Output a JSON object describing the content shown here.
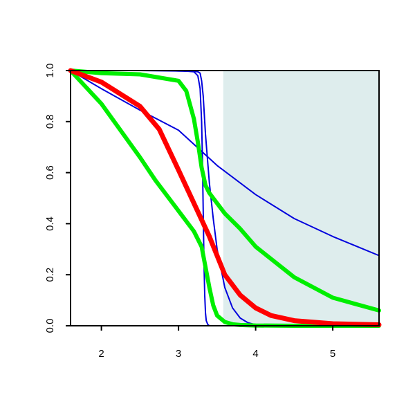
{
  "chart_data": {
    "type": "line",
    "title": "",
    "xlabel": "",
    "ylabel": "",
    "xlim": [
      1.6,
      5.6
    ],
    "ylim": [
      0,
      1
    ],
    "x_ticks": [
      2,
      3,
      4,
      5
    ],
    "y_ticks": [
      0,
      0.2,
      0.4,
      0.6,
      0.8,
      1
    ],
    "x_tick_labels": [
      "2",
      "3",
      "4",
      "5"
    ],
    "y_tick_labels": [
      "0.0",
      "0.2",
      "0.4",
      "0.6",
      "0.8",
      "1.0"
    ],
    "grid": false,
    "legend": "none",
    "shaded_region": {
      "x_from": 3.58,
      "x_to": 5.6,
      "color": "#deeded"
    },
    "series": [
      {
        "color": "#0000dd",
        "width": 2,
        "x": [
          1.6,
          2.0,
          2.5,
          3.0,
          3.5,
          4.0,
          4.5,
          5.0,
          5.6
        ],
        "y": [
          1.0,
          0.929,
          0.845,
          0.766,
          0.628,
          0.514,
          0.42,
          0.35,
          0.275
        ]
      },
      {
        "color": "#0000dd",
        "width": 2,
        "x": [
          1.6,
          2.5,
          3.0,
          3.2,
          3.25,
          3.28,
          3.3,
          3.32,
          3.35,
          3.4,
          3.45,
          3.5,
          3.6,
          3.7,
          3.8,
          3.9,
          4.0,
          4.5,
          5.6
        ],
        "y": [
          1.0,
          1.0,
          0.998,
          0.997,
          0.995,
          0.99,
          0.96,
          0.9,
          0.75,
          0.56,
          0.42,
          0.3,
          0.15,
          0.07,
          0.03,
          0.012,
          0.004,
          0.0,
          0.0
        ]
      },
      {
        "color": "#0000dd",
        "width": 2,
        "x": [
          1.6,
          3.0,
          3.2,
          3.25,
          3.28,
          3.3,
          3.31,
          3.32,
          3.33,
          3.34,
          3.35,
          3.36,
          3.38,
          3.4,
          3.6,
          5.6
        ],
        "y": [
          1.0,
          1.0,
          0.995,
          0.98,
          0.93,
          0.8,
          0.65,
          0.45,
          0.25,
          0.12,
          0.05,
          0.02,
          0.005,
          0.0,
          0.0,
          0.0
        ]
      },
      {
        "color": "#00ee00",
        "width": 6,
        "x": [
          1.6,
          2.0,
          2.5,
          3.0,
          3.1,
          3.2,
          3.25,
          3.3,
          3.35,
          3.4,
          3.45,
          3.5,
          3.6,
          3.8,
          4.0,
          4.5,
          5.0,
          5.6
        ],
        "y": [
          1.0,
          0.99,
          0.985,
          0.96,
          0.92,
          0.81,
          0.72,
          0.62,
          0.55,
          0.52,
          0.5,
          0.48,
          0.44,
          0.38,
          0.31,
          0.19,
          0.11,
          0.06
        ]
      },
      {
        "color": "#00ee00",
        "width": 6,
        "x": [
          1.6,
          2.0,
          2.5,
          2.7,
          3.0,
          3.2,
          3.3,
          3.35,
          3.4,
          3.45,
          3.5,
          3.6,
          3.7,
          3.8,
          4.0,
          4.5,
          5.6
        ],
        "y": [
          1.0,
          0.87,
          0.66,
          0.57,
          0.45,
          0.37,
          0.31,
          0.23,
          0.15,
          0.08,
          0.04,
          0.015,
          0.006,
          0.003,
          0.001,
          0.0,
          0.0
        ]
      },
      {
        "color": "#ff0000",
        "width": 7,
        "x": [
          1.6,
          2.0,
          2.5,
          2.75,
          3.0,
          3.2,
          3.4,
          3.6,
          3.8,
          4.0,
          4.2,
          4.5,
          5.0,
          5.6
        ],
        "y": [
          1.0,
          0.955,
          0.86,
          0.77,
          0.61,
          0.48,
          0.35,
          0.2,
          0.12,
          0.07,
          0.04,
          0.02,
          0.008,
          0.004
        ]
      }
    ]
  }
}
